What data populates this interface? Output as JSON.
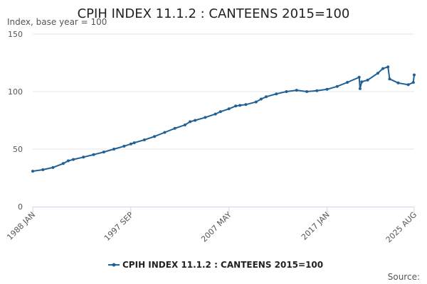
{
  "chart_data": {
    "type": "line",
    "title": "CPIH INDEX 11.1.2 : CANTEENS 2015=100",
    "subtitle": "Index, base year = 100",
    "credits": "Source:",
    "xlabel": "",
    "ylabel": "",
    "ylim": [
      0,
      150
    ],
    "y_ticks": [
      0,
      50,
      100,
      150
    ],
    "x_range": [
      "1988 JAN",
      "2025 AUG"
    ],
    "x_ticks": [
      "1988 JAN",
      "1997 SEP",
      "2007 MAY",
      "2017 JAN",
      "2025 AUG"
    ],
    "grid": true,
    "legend_position": "bottom",
    "colors": {
      "series": "#206095",
      "grid": "#e6e6e6",
      "axis": "#ccd6eb"
    },
    "series": [
      {
        "name": "CPIH INDEX 11.1.2 : CANTEENS 2015=100",
        "points": [
          [
            "1988 JAN",
            30.8
          ],
          [
            "1989 JAN",
            32.1
          ],
          [
            "1990 JAN",
            34.0
          ],
          [
            "1991 JAN",
            37.5
          ],
          [
            "1991 JUL",
            39.8
          ],
          [
            "1992 JAN",
            41.0
          ],
          [
            "1993 JAN",
            43.0
          ],
          [
            "1994 JAN",
            45.2
          ],
          [
            "1995 JAN",
            47.5
          ],
          [
            "1996 JAN",
            50.0
          ],
          [
            "1997 JAN",
            52.5
          ],
          [
            "1997 SEP",
            54.5
          ],
          [
            "1998 JAN",
            55.5
          ],
          [
            "1999 JAN",
            58.0
          ],
          [
            "2000 JAN",
            61.0
          ],
          [
            "2001 JAN",
            64.5
          ],
          [
            "2002 JAN",
            68.0
          ],
          [
            "2003 JAN",
            71.0
          ],
          [
            "2003 JUL",
            73.8
          ],
          [
            "2004 JAN",
            75.0
          ],
          [
            "2005 JAN",
            77.5
          ],
          [
            "2006 JAN",
            80.5
          ],
          [
            "2006 JUL",
            82.5
          ],
          [
            "2007 MAY",
            85.0
          ],
          [
            "2008 JAN",
            87.5
          ],
          [
            "2008 JUN",
            88.0
          ],
          [
            "2009 JAN",
            88.7
          ],
          [
            "2010 JAN",
            91.0
          ],
          [
            "2010 JUL",
            93.5
          ],
          [
            "2011 JAN",
            95.5
          ],
          [
            "2012 JAN",
            98.0
          ],
          [
            "2013 JAN",
            100.0
          ],
          [
            "2014 JAN",
            101.2
          ],
          [
            "2015 JAN",
            100.0
          ],
          [
            "2016 JAN",
            100.8
          ],
          [
            "2017 JAN",
            102.0
          ],
          [
            "2018 JAN",
            104.5
          ],
          [
            "2019 JAN",
            108.0
          ],
          [
            "2020 MAR",
            112.5
          ],
          [
            "2020 APR",
            102.5
          ],
          [
            "2020 JUN",
            108.5
          ],
          [
            "2021 JAN",
            110.0
          ],
          [
            "2022 JAN",
            116.0
          ],
          [
            "2022 JUL",
            120.0
          ],
          [
            "2023 JAN",
            121.5
          ],
          [
            "2023 MAR",
            111.0
          ],
          [
            "2024 JAN",
            107.5
          ],
          [
            "2025 JAN",
            106.0
          ],
          [
            "2025 JUL",
            108.0
          ],
          [
            "2025 AUG",
            114.5
          ]
        ]
      }
    ]
  }
}
